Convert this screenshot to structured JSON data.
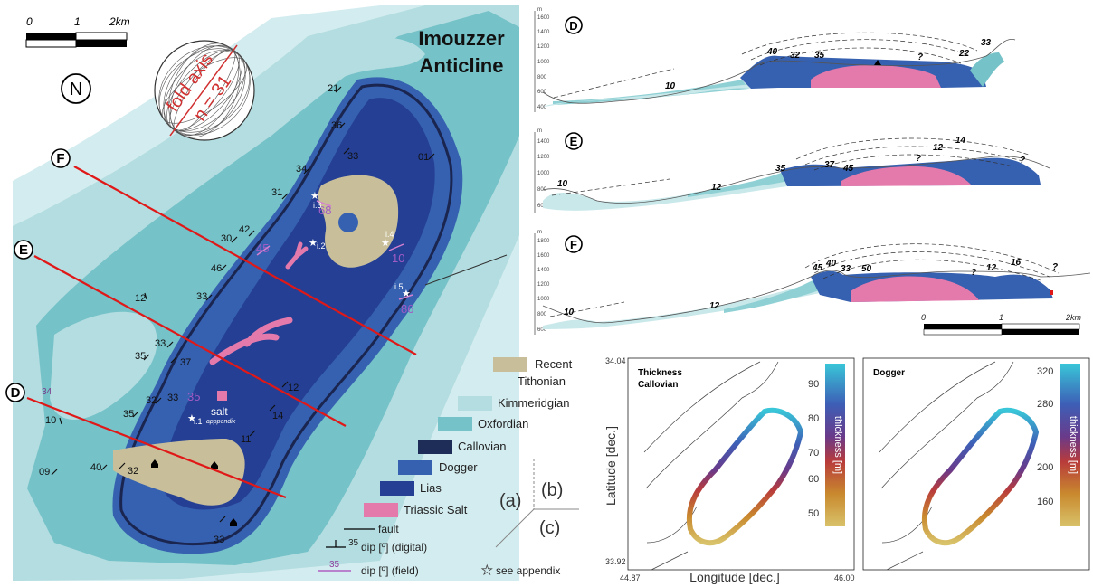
{
  "map": {
    "title_line1": "Imouzzer",
    "title_line2": "Anticline",
    "north_label": "N",
    "scalebar": {
      "t0": "0",
      "t1": "1",
      "t2": "2km"
    },
    "stereonet": {
      "label1": "fold axis",
      "label2": "n = 31"
    },
    "section_markers": [
      {
        "label": "F"
      },
      {
        "label": "E"
      },
      {
        "label": "D"
      }
    ],
    "digital_dips": [
      "21",
      "36",
      "33",
      "01",
      "34",
      "31",
      "42",
      "30",
      "46",
      "33",
      "12",
      "33",
      "35",
      "37",
      "32",
      "33",
      "35",
      "10",
      "09",
      "40",
      "32",
      "11",
      "14",
      "12",
      "33"
    ],
    "field_dips": [
      "68",
      "45",
      "10",
      "86",
      "35",
      "34"
    ],
    "appendix_points": [
      "i.3",
      "i.2",
      "i.4",
      "i.5",
      "i.1"
    ],
    "salt_label": "salt",
    "salt_sublabel": "apppendix"
  },
  "legend": {
    "items": [
      {
        "label": "Recent",
        "color": "#c8bf9a"
      },
      {
        "label": "Tithonian",
        "color": "#d3ecef"
      },
      {
        "label": "Kimmeridgian",
        "color": "#b3dde0"
      },
      {
        "label": "Oxfordian",
        "color": "#75c2c8"
      },
      {
        "label": "Callovian",
        "color": "#1e2d58"
      },
      {
        "label": "Dogger",
        "color": "#3660b0"
      },
      {
        "label": "Lias",
        "color": "#243f94"
      },
      {
        "label": "Triassic Salt",
        "color": "#e47aac"
      }
    ],
    "fault_label": "fault",
    "dip_digital_label": "dip [º] (digital)",
    "dip_field_label": "dip [º] (field)",
    "dip_digital_value": "35",
    "dip_field_value": "35",
    "appendix_label": "see appendix",
    "panel_a": "(a)",
    "panel_b": "(b)",
    "panel_c": "(c)"
  },
  "sections": [
    {
      "label": "D",
      "unit": "m",
      "yticks": [
        "1600",
        "1400",
        "1200",
        "1000",
        "800",
        "600",
        "400"
      ],
      "dips": [
        "40",
        "32",
        "35",
        "?",
        "22",
        "33",
        "10"
      ]
    },
    {
      "label": "E",
      "unit": "m",
      "yticks": [
        "1400",
        "1200",
        "1000",
        "800",
        "600"
      ],
      "dips": [
        "35",
        "37",
        "45",
        "?",
        "12",
        "14",
        "?",
        "10",
        "12"
      ]
    },
    {
      "label": "F",
      "unit": "m",
      "yticks": [
        "1800",
        "1600",
        "1400",
        "1200",
        "1000",
        "800",
        "600"
      ],
      "dips": [
        "45",
        "40",
        "33",
        "50",
        "?",
        "12",
        "16",
        "?",
        "12",
        "10"
      ]
    }
  ],
  "section_scalebar": {
    "t0": "0",
    "t1": "1",
    "t2": "2km"
  },
  "thickness_plots": {
    "ylabel": "Latitude [dec.]",
    "xlabel": "Longitude [dec.]",
    "ytick_top": "34.04",
    "ytick_bottom": "33.92",
    "xtick_left": "44.87",
    "xtick_right": "46.00",
    "colorbar_label": "thickness [m]",
    "callovian": {
      "title_line1": "Thickness",
      "title_line2": "Callovian",
      "ticks": [
        "90",
        "80",
        "70",
        "60",
        "50"
      ]
    },
    "dogger": {
      "title": "Dogger",
      "ticks": [
        "320",
        "280",
        "200",
        "160"
      ]
    }
  }
}
